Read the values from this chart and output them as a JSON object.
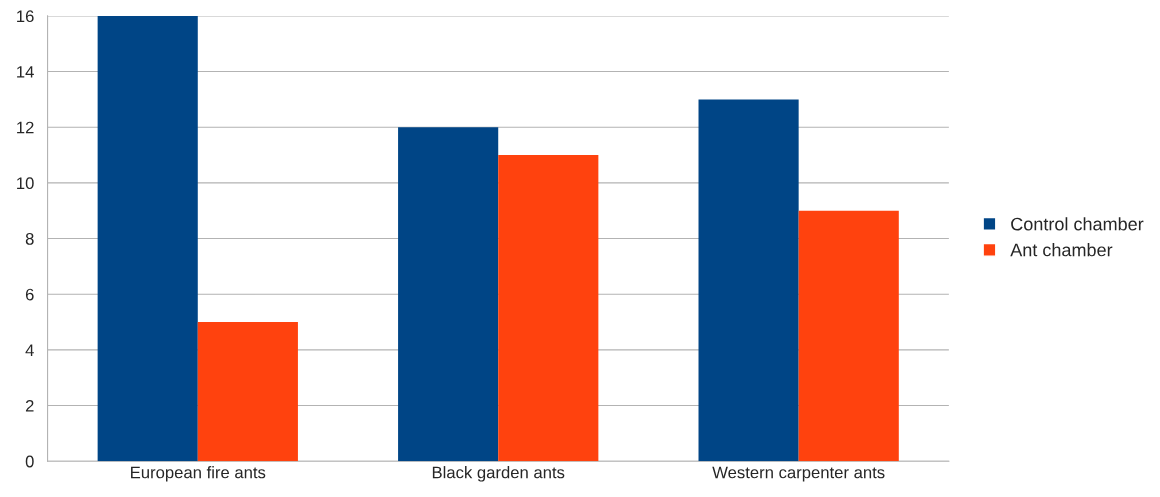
{
  "chart_data": {
    "type": "bar",
    "categories": [
      "European fire ants",
      "Black garden ants",
      "Western carpenter ants"
    ],
    "series": [
      {
        "name": "Control chamber",
        "color": "#004586",
        "values": [
          16,
          12,
          13
        ]
      },
      {
        "name": "Ant chamber",
        "color": "#ff420e",
        "values": [
          5,
          11,
          9
        ]
      }
    ],
    "ylim": [
      0,
      16
    ],
    "yticks": [
      0,
      2,
      4,
      6,
      8,
      10,
      12,
      14,
      16
    ],
    "grid": "y",
    "legend": "right"
  }
}
